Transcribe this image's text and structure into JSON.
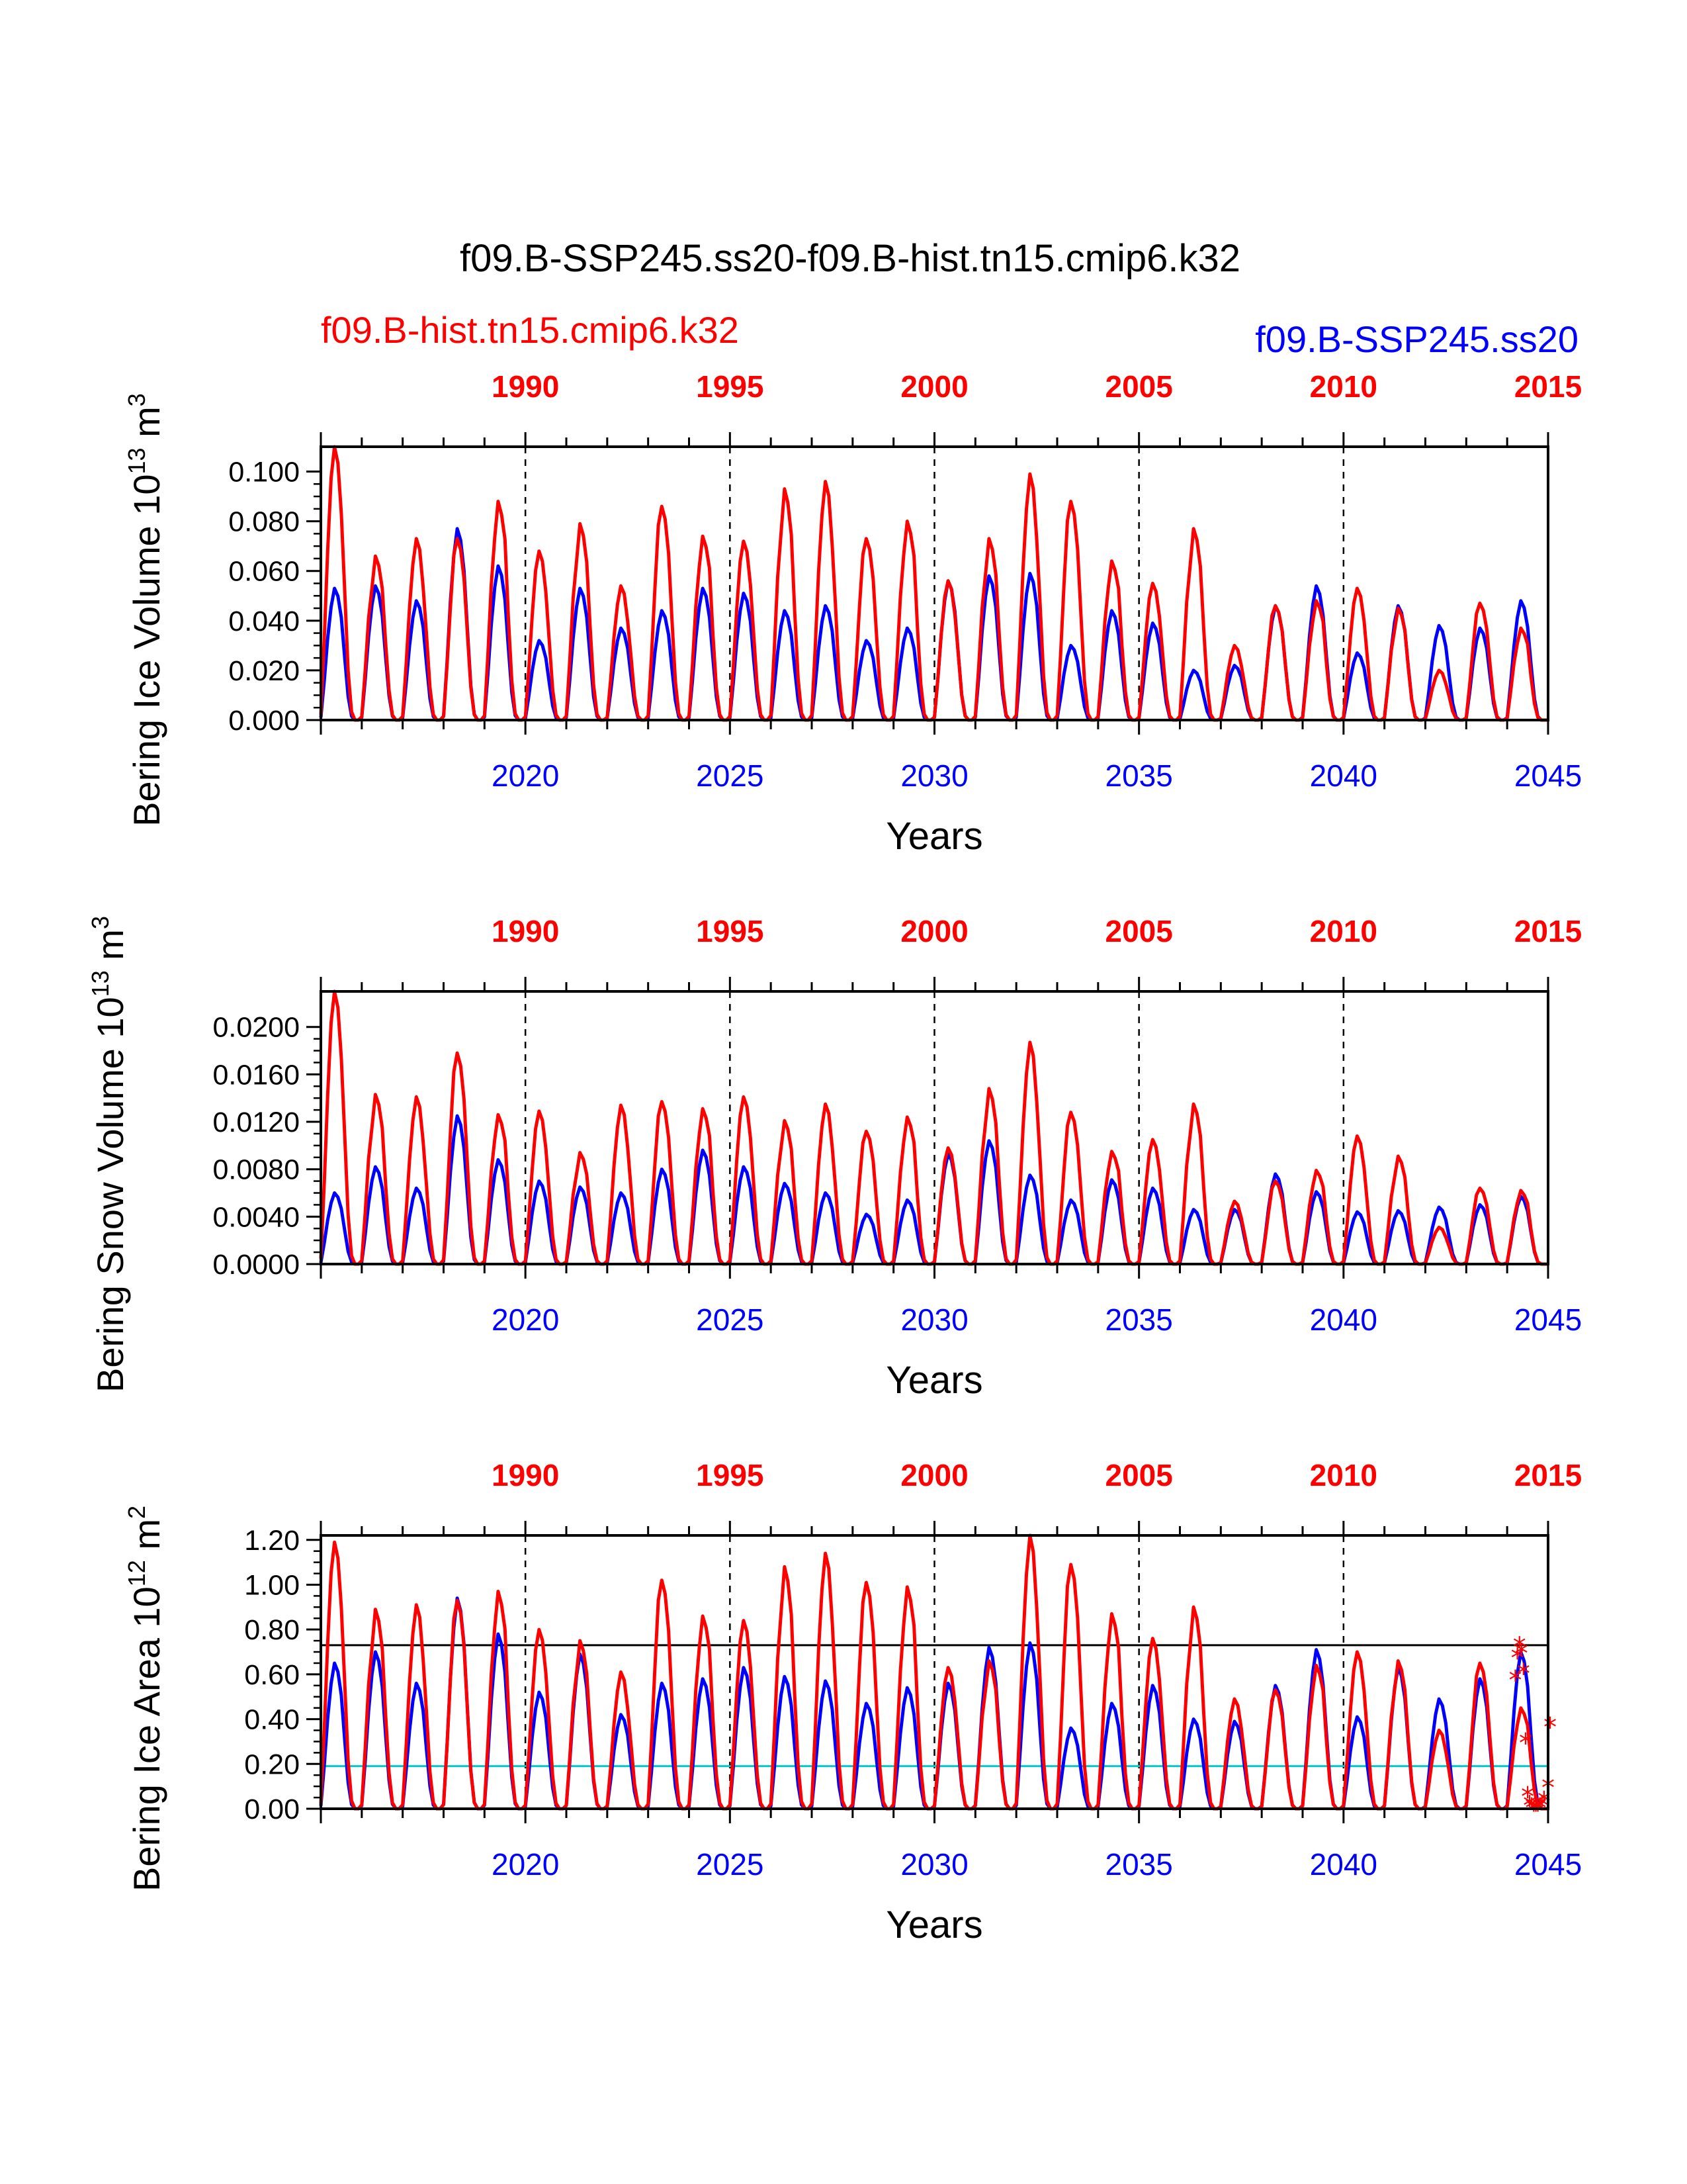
{
  "title": "f09.B-SSP245.ss20-f09.B-hist.tn15.cmip6.k32",
  "legend": {
    "left": {
      "text": "f09.B-hist.tn15.cmip6.k32",
      "color": "#ff0000"
    },
    "right": {
      "text": "f09.B-SSP245.ss20",
      "color": "#0000ff"
    }
  },
  "colors": {
    "hist": "#ff0000",
    "ssp": "#0000ff",
    "ref_black": "#000000",
    "ref_cyan": "#00cccc"
  },
  "chart_data": [
    {
      "type": "line",
      "ylabel": "Bering Ice Volume 10",
      "ylabel_sup": "13",
      "ylabel_unit": " m",
      "ylabel_unit_sup": "3",
      "xlabel": "Years",
      "ylim": [
        0,
        0.11
      ],
      "yticks": [
        "0.000",
        "0.020",
        "0.040",
        "0.060",
        "0.080",
        "0.100"
      ],
      "ytick_values": [
        0,
        0.02,
        0.04,
        0.06,
        0.08,
        0.1
      ],
      "x_bottom": {
        "range": [
          2015,
          2045
        ],
        "ticks": [
          "2020",
          "2025",
          "2030",
          "2035",
          "2040",
          "2045"
        ]
      },
      "x_top": {
        "range": [
          1985,
          2015
        ],
        "ticks": [
          "1990",
          "1995",
          "2000",
          "2005",
          "2010",
          "2015"
        ]
      },
      "series": [
        {
          "role": "hist",
          "peaks": [
            0.11,
            0.066,
            0.073,
            0.073,
            0.088,
            0.068,
            0.079,
            0.054,
            0.086,
            0.074,
            0.072,
            0.093,
            0.096,
            0.073,
            0.08,
            0.056,
            0.073,
            0.099,
            0.088,
            0.064,
            0.055,
            0.077,
            0.03,
            0.046,
            0.048,
            0.053,
            0.045,
            0.02,
            0.047,
            0.037
          ]
        },
        {
          "role": "ssp",
          "peaks": [
            0.053,
            0.054,
            0.048,
            0.077,
            0.062,
            0.032,
            0.053,
            0.037,
            0.044,
            0.053,
            0.051,
            0.044,
            0.046,
            0.032,
            0.037,
            0.056,
            0.058,
            0.059,
            0.03,
            0.044,
            0.039,
            0.02,
            0.022,
            0.046,
            0.054,
            0.027,
            0.046,
            0.038,
            0.037,
            0.048
          ]
        }
      ]
    },
    {
      "type": "line",
      "ylabel": "Bering Snow Volume 10",
      "ylabel_sup": "13",
      "ylabel_unit": " m",
      "ylabel_unit_sup": "3",
      "xlabel": "Years",
      "ylim": [
        0,
        0.023
      ],
      "yticks": [
        "0.0000",
        "0.0040",
        "0.0080",
        "0.0120",
        "0.0160",
        "0.0200"
      ],
      "ytick_values": [
        0,
        0.004,
        0.008,
        0.012,
        0.016,
        0.02
      ],
      "x_bottom": {
        "range": [
          2015,
          2045
        ],
        "ticks": [
          "2020",
          "2025",
          "2030",
          "2035",
          "2040",
          "2045"
        ]
      },
      "x_top": {
        "range": [
          1985,
          2015
        ],
        "ticks": [
          "1990",
          "1995",
          "2000",
          "2005",
          "2010",
          "2015"
        ]
      },
      "series": [
        {
          "role": "hist",
          "peaks": [
            0.023,
            0.0143,
            0.0141,
            0.0178,
            0.0126,
            0.0129,
            0.0094,
            0.0134,
            0.0137,
            0.0131,
            0.0141,
            0.0121,
            0.0135,
            0.0112,
            0.0124,
            0.0098,
            0.0148,
            0.0187,
            0.0128,
            0.0095,
            0.0105,
            0.0135,
            0.0053,
            0.007,
            0.0079,
            0.0108,
            0.0091,
            0.0031,
            0.0064,
            0.0062
          ]
        },
        {
          "role": "ssp",
          "peaks": [
            0.006,
            0.0082,
            0.0064,
            0.0125,
            0.0088,
            0.007,
            0.0065,
            0.006,
            0.008,
            0.0096,
            0.0082,
            0.0068,
            0.006,
            0.0042,
            0.0054,
            0.0093,
            0.0104,
            0.0075,
            0.0054,
            0.0071,
            0.0064,
            0.0046,
            0.0046,
            0.0076,
            0.0061,
            0.0044,
            0.0045,
            0.0048,
            0.005,
            0.0057
          ]
        }
      ]
    },
    {
      "type": "line",
      "ylabel": "Bering Ice Area 10",
      "ylabel_sup": "12",
      "ylabel_unit": " m",
      "ylabel_unit_sup": "2",
      "xlabel": "Years",
      "ylim": [
        0,
        1.22
      ],
      "yticks": [
        "0.00",
        "0.20",
        "0.40",
        "0.60",
        "0.80",
        "1.00",
        "1.20"
      ],
      "ytick_values": [
        0,
        0.2,
        0.4,
        0.6,
        0.8,
        1.0,
        1.2
      ],
      "x_bottom": {
        "range": [
          2015,
          2045
        ],
        "ticks": [
          "2020",
          "2025",
          "2030",
          "2035",
          "2040",
          "2045"
        ]
      },
      "x_top": {
        "range": [
          1985,
          2015
        ],
        "ticks": [
          "1990",
          "1995",
          "2000",
          "2005",
          "2010",
          "2015"
        ]
      },
      "ref_lines": [
        {
          "y": 0.73,
          "color": "#000000"
        },
        {
          "y": 0.19,
          "color": "#00cccc"
        }
      ],
      "series": [
        {
          "role": "hist",
          "peaks": [
            1.19,
            0.89,
            0.91,
            0.93,
            0.97,
            0.8,
            0.75,
            0.61,
            1.02,
            0.86,
            0.84,
            1.08,
            1.14,
            1.01,
            0.99,
            0.63,
            0.66,
            1.22,
            1.09,
            0.87,
            0.76,
            0.9,
            0.49,
            0.53,
            0.64,
            0.7,
            0.66,
            0.35,
            0.65,
            0.45
          ]
        },
        {
          "role": "ssp",
          "peaks": [
            0.65,
            0.7,
            0.56,
            0.94,
            0.78,
            0.52,
            0.69,
            0.42,
            0.56,
            0.58,
            0.63,
            0.59,
            0.57,
            0.47,
            0.54,
            0.56,
            0.72,
            0.74,
            0.36,
            0.47,
            0.55,
            0.4,
            0.39,
            0.55,
            0.71,
            0.41,
            0.63,
            0.49,
            0.58,
            0.7
          ]
        }
      ],
      "markers": {
        "symbol": "*",
        "x": [
          2044.2,
          2044.25,
          2044.3,
          2044.35,
          2044.4,
          2044.45,
          2044.5,
          2044.55,
          2044.6,
          2044.65,
          2044.7,
          2044.75,
          2044.8,
          2044.85,
          2044.9,
          2045.0,
          2045.05
        ],
        "y": [
          0.58,
          0.68,
          0.73,
          0.7,
          0.61,
          0.3,
          0.06,
          0.02,
          0.01,
          0.0,
          0.0,
          0.0,
          0.01,
          0.02,
          0.04,
          0.1,
          0.37
        ]
      }
    }
  ]
}
